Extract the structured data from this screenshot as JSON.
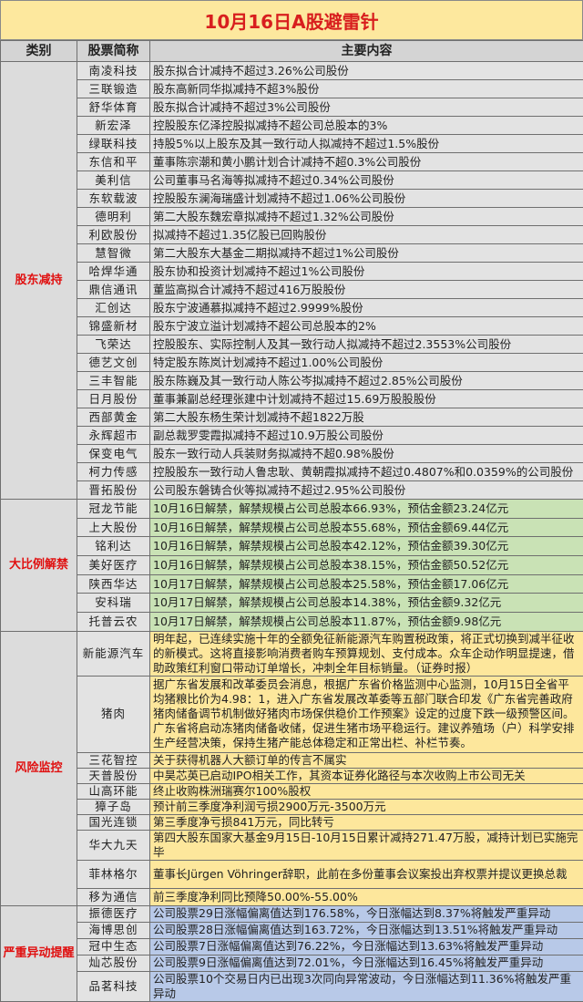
{
  "title": "10月16日A股避雷针",
  "header": {
    "category": "类别",
    "stock": "股票简称",
    "content": "主要内容"
  },
  "colors": {
    "title_bg": "#fde89e",
    "title_text": "#d81e1e",
    "category_text": "#e01010",
    "unlock_bg": "#c9e2b5",
    "risk_bg": "#fde79c",
    "abnormal_bg": "#b8c9e8"
  },
  "sections": [
    {
      "category": "股东减持",
      "rows": [
        {
          "stock": "南凌科技",
          "content": "股东拟合计减持不超过3.26%公司股份"
        },
        {
          "stock": "三联锻造",
          "content": "股东高新同华拟减持不超3%股份"
        },
        {
          "stock": "舒华体育",
          "content": "股东拟合计减持不超过3%公司股份"
        },
        {
          "stock": "新宏泽",
          "content": "控股股东亿泽控股拟减持不超公司总股本的3%"
        },
        {
          "stock": "绿联科技",
          "content": "持股5%以上股东及其一致行动人拟减持不超过1.5%股份"
        },
        {
          "stock": "东信和平",
          "content": "董事陈宗潮和黄小鹏计划合计减持不超0.3%公司股份"
        },
        {
          "stock": "美利信",
          "content": "公司董事马名海等拟减持不超过0.34%公司股份"
        },
        {
          "stock": "东软载波",
          "content": "控股股东澜海瑞盛计划减持不超过1.06%公司股份"
        },
        {
          "stock": "德明利",
          "content": "第二大股东魏宏章拟减持不超过1.32%公司股份"
        },
        {
          "stock": "利欧股份",
          "content": "拟减持不超过1.35亿股已回购股份"
        },
        {
          "stock": "慧智微",
          "content": "第二大股东大基金二期拟减持不超过1%公司股份"
        },
        {
          "stock": "哈焊华通",
          "content": "股东协和投资计划减持不超过1%公司股份"
        },
        {
          "stock": "鼎信通讯",
          "content": "董监高拟合计减持不超过416万股股份"
        },
        {
          "stock": "汇创达",
          "content": "股东宁波通慕拟减持不超过2.9999%股份"
        },
        {
          "stock": "锦盛新材",
          "content": "股东宁波立溢计划减持不超公司总股本的2%"
        },
        {
          "stock": "飞荣达",
          "content": "控股股东、实际控制人及其一致行动人拟减持不超过2.3553%公司股份"
        },
        {
          "stock": "德艺文创",
          "content": "特定股东陈岚计划减持不超过1.00%公司股份"
        },
        {
          "stock": "三丰智能",
          "content": "股东陈巍及其一致行动人陈公岑拟减持不超过2.85%公司股份"
        },
        {
          "stock": "日月股份",
          "content": "董事兼副总经理张建中计划减持不超过15.69万股股股份"
        },
        {
          "stock": "西部黄金",
          "content": "第二大股东杨生荣计划减持不超1822万股"
        },
        {
          "stock": "永辉超市",
          "content": "副总裁罗雯霞拟减持不超过10.9万股公司股份"
        },
        {
          "stock": "保变电气",
          "content": "股东一致行动人兵装财务拟减持不超0.98%股份"
        },
        {
          "stock": "柯力传感",
          "content": "控股股东一致行动人鲁忠耿、黄朝霞拟减持不超过0.4807%和0.0359%的公司股份"
        },
        {
          "stock": "晋拓股份",
          "content": "公司股东磐铸合伙等拟减持不超过2.95%公司股份"
        }
      ]
    },
    {
      "category": "大比例解禁",
      "rows": [
        {
          "stock": "冠龙节能",
          "content": "10月16日解禁，解禁规模占公司总股本66.93%，预估金额23.24亿元"
        },
        {
          "stock": "上大股份",
          "content": "10月16日解禁，解禁规模占公司总股本55.68%，预估金额69.44亿元"
        },
        {
          "stock": "铭利达",
          "content": "10月16日解禁，解禁规模占公司总股本42.12%，预估金额39.30亿元"
        },
        {
          "stock": "美好医疗",
          "content": "10月16日解禁，解禁规模占公司总股本38.15%，预估金额50.52亿元"
        },
        {
          "stock": "陕西华达",
          "content": "10月17日解禁，解禁规模占公司总股本25.58%，预估金额17.06亿元"
        },
        {
          "stock": "安科瑞",
          "content": "10月17日解禁，解禁规模占公司总股本14.38%，预估金额9.32亿元"
        },
        {
          "stock": "托普云农",
          "content": "10月17日解禁，解禁规模占公司总股本11.87%，预估金额9.98亿元"
        }
      ]
    },
    {
      "category": "风险监控",
      "rows": [
        {
          "stock": "新能源汽车",
          "content": "明年起，已连续实施十年的全额免征新能源汽车购置税政策，将正式切换到减半征收的新模式。这将直接影响消费者购车预算规划、支付成本。众车企动作明显提速，借助政策红利窗口带动订单增长，冲刺全年目标销量。（证券时报）"
        },
        {
          "stock": "猪肉",
          "content": "据广东省发展和改革委员会消息，根据广东省价格监测中心监测，10月15日全省平均猪粮比价为4.98：1，进入广东省发展改革委等五部门联合印发《广东省完善政府猪肉储备调节机制做好猪肉市场保供稳价工作预案》设定的过度下跌一级预警区间。广东省将启动冻猪肉储备收储，促进生猪市场平稳运行。建议养殖场（户）科学安排生产经营决策，保持生猪产能总体稳定和正常出栏、补栏节奏。"
        },
        {
          "stock": "三花智控",
          "content": "关于获得机器人大额订单的传言不属实"
        },
        {
          "stock": "天普股份",
          "content": "中昊芯英已启动IPO相关工作，其资本证券化路径与本次收购上市公司无关"
        },
        {
          "stock": "山高环能",
          "content": "终止收购株洲瑞赛尔100%股权"
        },
        {
          "stock": "獐子岛",
          "content": "预计前三季度净利润亏损2900万元-3500万元"
        },
        {
          "stock": "国光连锁",
          "content": "第三季度净亏损841万元，同比转亏"
        },
        {
          "stock": "华大九天",
          "content": "第四大股东国家大基金9月15日-10月15日累计减持271.47万股，减持计划已实施完毕"
        },
        {
          "stock": "菲林格尔",
          "content": "董事长Jürgen Vöhringer辞职，此前在多份董事会议案投出弃权票并提议更换总裁"
        },
        {
          "stock": "移为通信",
          "content": "前三季度净利同比预降50.00%-55.00%"
        }
      ]
    },
    {
      "category": "严重异动提醒",
      "rows": [
        {
          "stock": "振德医疗",
          "content": "公司股票29日涨幅偏离值达到176.58%，今日涨幅达到8.37%将触发严重异动"
        },
        {
          "stock": "海博思创",
          "content": "公司股票28日涨幅偏离值达到163.72%，今日涨幅达到13.51%将触发严重异动"
        },
        {
          "stock": "冠中生态",
          "content": "公司股票7日涨幅偏离值达到76.22%，今日涨幅达到13.63%将触发严重异动"
        },
        {
          "stock": "灿芯股份",
          "content": "公司股票9日涨幅偏离值达到72.01%，今日涨幅达到16.45%将触发严重异动"
        },
        {
          "stock": "品茗科技",
          "content": "公司股票10个交易日内已出现3次同向异常波动，今日涨幅达到11.36%将触发严重异动"
        }
      ]
    }
  ]
}
